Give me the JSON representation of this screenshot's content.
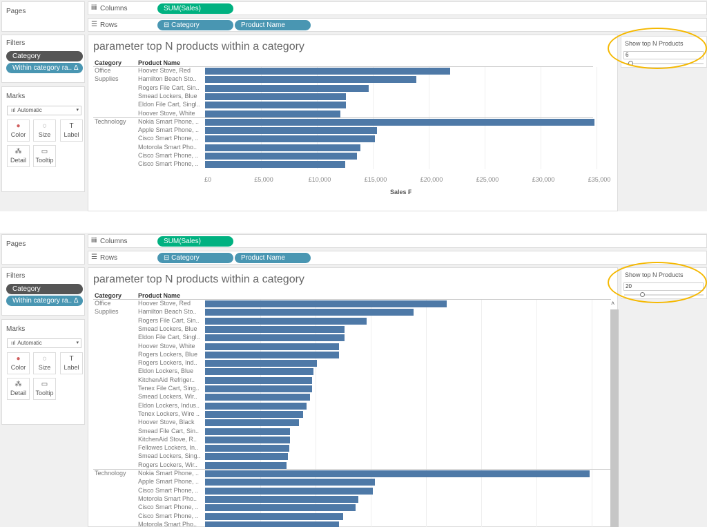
{
  "shelves": {
    "pages": "Pages",
    "columns": "Columns",
    "rows": "Rows",
    "columns_pill": "SUM(Sales)",
    "rows_pills": [
      "⊟ Category",
      "Product Name"
    ]
  },
  "filters": {
    "title": "Filters",
    "items": [
      "Category",
      "Within category ra.. Δ"
    ]
  },
  "marks": {
    "title": "Marks",
    "type": "Automatic",
    "buttons": [
      "Color",
      "Size",
      "Label",
      "Detail",
      "Tooltip"
    ]
  },
  "colors": {
    "bar": "#4e79a7",
    "columns_pill": "#00b180",
    "rows_pill": "#4996b2",
    "filter_dark": "#555555",
    "highlight": "#f5b800"
  },
  "panels": [
    {
      "chart_data": {
        "type": "bar",
        "title": "parameter top N products within a category",
        "row_headers": [
          "Category",
          "Product Name"
        ],
        "xlabel": "Sales ₣",
        "xlim": [
          0,
          35000
        ],
        "xticks": [
          "£0",
          "£5,000",
          "£10,000",
          "£15,000",
          "£20,000",
          "£25,000",
          "£30,000",
          "£35,000"
        ],
        "groups": [
          {
            "category": [
              "Office",
              "Supplies"
            ],
            "products": [
              "Hoover Stove, Red",
              "Hamilton Beach Sto..",
              "Rogers File Cart, Sin..",
              "Smead Lockers, Blue",
              "Eldon File Cart, Singl..",
              "Hoover Stove, White"
            ],
            "values": [
              21900,
              18900,
              14600,
              12600,
              12600,
              12100
            ]
          },
          {
            "category": [
              "Technology"
            ],
            "products": [
              "Nokia Smart Phone, ..",
              "Apple Smart Phone, ..",
              "Cisco Smart Phone, ..",
              "Motorola Smart Pho..",
              "Cisco Smart Phone, ..",
              "Cisco Smart Phone, .."
            ],
            "values": [
              34800,
              15400,
              15200,
              13900,
              13600,
              12500
            ]
          }
        ]
      },
      "parameter": {
        "title": "Show top N Products",
        "value": "6",
        "slider_fraction": 0.05
      }
    },
    {
      "chart_data": {
        "type": "bar",
        "title": "parameter top N products within a category",
        "row_headers": [
          "Category",
          "Product Name"
        ],
        "xlim": [
          0,
          35000
        ],
        "groups": [
          {
            "category": [
              "Office",
              "Supplies"
            ],
            "products": [
              "Hoover Stove, Red",
              "Hamilton Beach Sto..",
              "Rogers File Cart, Sin..",
              "Smead Lockers, Blue",
              "Eldon File Cart, Singl..",
              "Hoover Stove, White",
              "Rogers Lockers, Blue",
              "Rogers Lockers, Ind..",
              "Eldon Lockers, Blue",
              "KitchenAid Refriger..",
              "Tenex File Cart, Sing..",
              "Smead Lockers, Wir..",
              "Eldon Lockers, Indus..",
              "Tenex Lockers, Wire ..",
              "Hoover Stove, Black",
              "Smead File Cart, Sin..",
              "KitchenAid Stove, R..",
              "Fellowes Lockers, In..",
              "Smead Lockers, Sing..",
              "Rogers Lockers, Wir.."
            ],
            "values": [
              21900,
              18900,
              14600,
              12600,
              12600,
              12100,
              12100,
              10100,
              9800,
              9700,
              9700,
              9500,
              9200,
              8900,
              8500,
              7700,
              7700,
              7600,
              7500,
              7400
            ]
          },
          {
            "category": [
              "Technology"
            ],
            "products": [
              "Nokia Smart Phone, ..",
              "Apple Smart Phone, ..",
              "Cisco Smart Phone, ..",
              "Motorola Smart Pho..",
              "Cisco Smart Phone, ..",
              "Cisco Smart Phone, ..",
              "Motorola Smart Pho.."
            ],
            "values": [
              34800,
              15400,
              15200,
              13900,
              13600,
              12500,
              12100
            ]
          }
        ]
      },
      "parameter": {
        "title": "Show top N Products",
        "value": "20",
        "slider_fraction": 0.2
      }
    }
  ]
}
